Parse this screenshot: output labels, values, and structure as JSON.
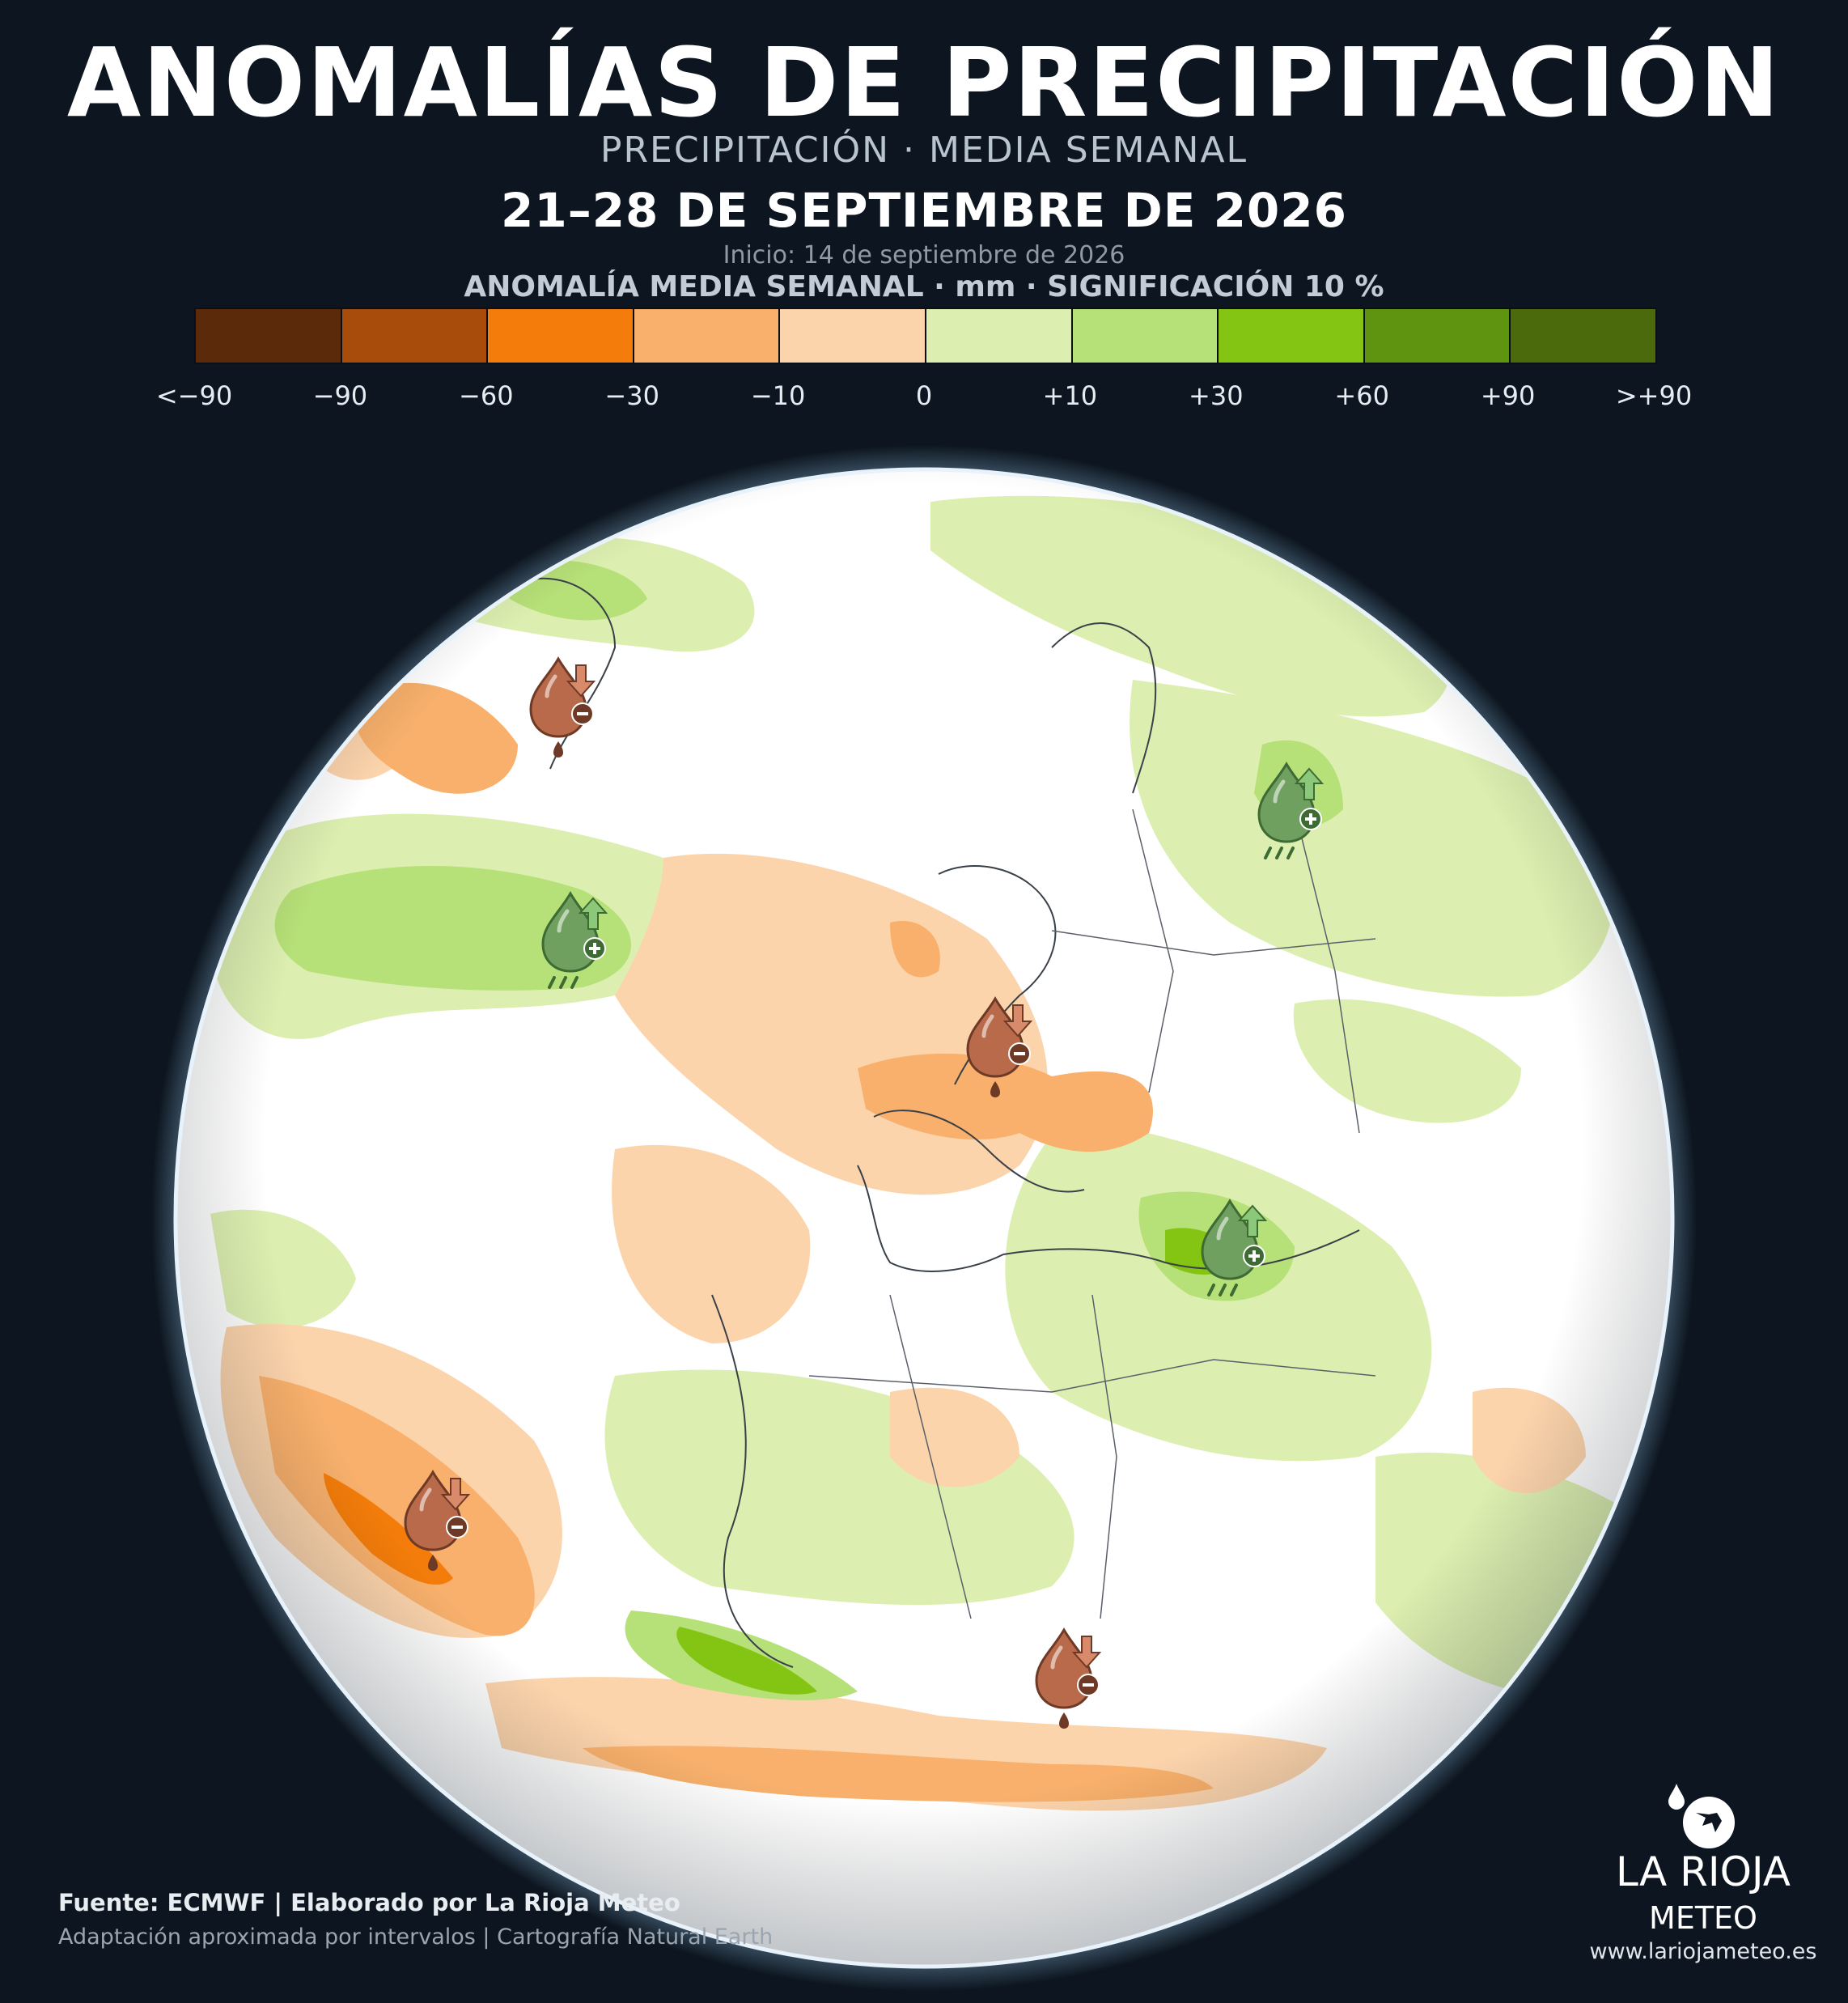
{
  "header": {
    "title": "ANOMALÍAS DE PRECIPITACIÓN",
    "subtitle": "PRECIPITACIÓN · MEDIA SEMANAL",
    "date_range": "21–28 DE SEPTIEMBRE DE 2026",
    "init": "Inicio: 14 de septiembre de 2026"
  },
  "legend": {
    "title": "ANOMALÍA MEDIA SEMANAL · mm · SIGNIFICACIÓN 10 %",
    "colors": [
      "#5a2a0a",
      "#a84c0c",
      "#f37c0a",
      "#f8b06c",
      "#fcd4ac",
      "#dcefb0",
      "#b6e078",
      "#84c514",
      "#5e9410",
      "#4a6a0c"
    ],
    "ticks": [
      "<−90",
      "−90",
      "−60",
      "−30",
      "−10",
      "0",
      "+10",
      "+30",
      "+60",
      "+90",
      ">+90"
    ]
  },
  "map": {
    "markers": [
      {
        "type": "dry",
        "icon": "dry-drop-icon"
      },
      {
        "type": "wet",
        "icon": "wet-drop-icon"
      },
      {
        "type": "wet",
        "icon": "wet-drop-icon"
      },
      {
        "type": "dry",
        "icon": "dry-drop-icon"
      },
      {
        "type": "wet",
        "icon": "wet-drop-icon"
      },
      {
        "type": "dry",
        "icon": "dry-drop-icon"
      },
      {
        "type": "dry",
        "icon": "dry-drop-icon"
      }
    ]
  },
  "footer": {
    "source": "Fuente: ECMWF | Elaborado por La Rioja Meteo",
    "note": "Adaptación aproximada por intervalos | Cartografía Natural Earth"
  },
  "logo": {
    "name": "LA RIOJA",
    "meteo": "METEO",
    "url": "www.lariojameteo.es"
  }
}
